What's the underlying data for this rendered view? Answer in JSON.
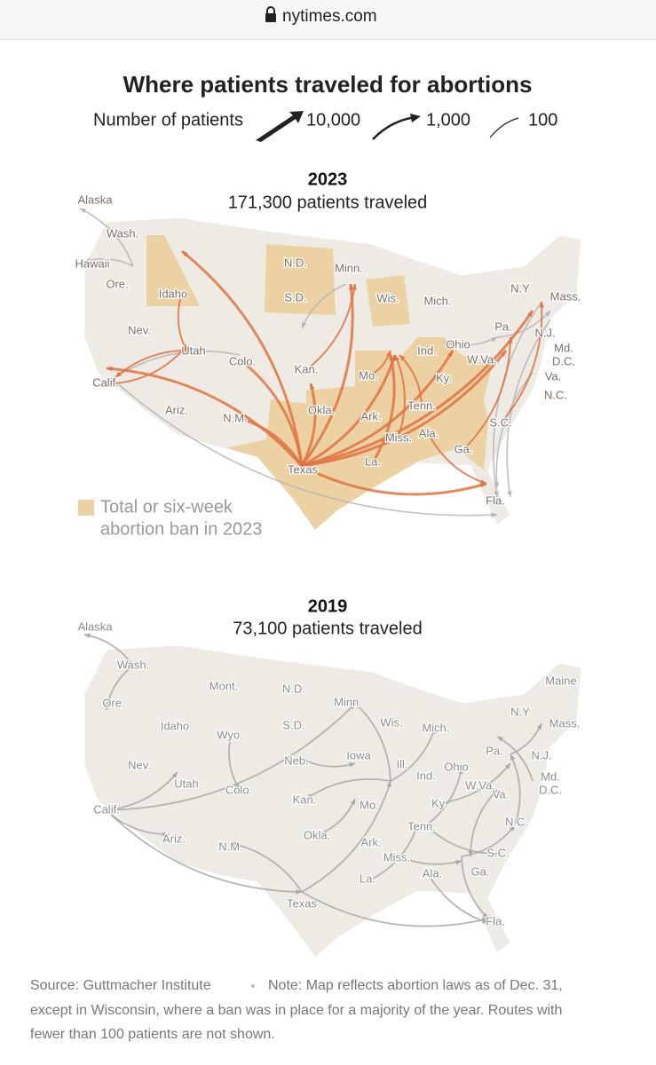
{
  "browser": {
    "url": "nytimes.com"
  },
  "header": {
    "title": "Where patients traveled for abortions",
    "legend_label": "Number of patients",
    "legend_items": [
      "10,000",
      "1,000",
      "100"
    ]
  },
  "maps": [
    {
      "year": "2023",
      "subtitle": "171,300 patients traveled",
      "labels": [
        "Alaska",
        "Wash.",
        "Hawaii",
        "Ore.",
        "Idaho",
        "N.D.",
        "S.D.",
        "Minn.",
        "Wis.",
        "Mich.",
        "N.Y",
        "Mass.",
        "Nev.",
        "Utah",
        "Colo.",
        "Kan.",
        "Mo.",
        "Ind.",
        "Ohio",
        "Pa.",
        "N.J.",
        "Md.",
        "D.C.",
        "W.Va.",
        "Ky.",
        "Va.",
        "N.C.",
        "Calif.",
        "Ariz.",
        "N.M.",
        "Okla.",
        "Ark.",
        "Tenn.",
        "S.C.",
        "Miss.",
        "Ala.",
        "Ga.",
        "Texas",
        "La.",
        "Fla."
      ],
      "ban_legend": [
        "Total or six-week",
        "abortion ban in 2023"
      ]
    },
    {
      "year": "2019",
      "subtitle": "73,100 patients traveled",
      "labels": [
        "Alaska",
        "Wash.",
        "Mont.",
        "N.D.",
        "Ore.",
        "Minn.",
        "Idaho",
        "S.D.",
        "Wis.",
        "Mich.",
        "Wyo.",
        "Maine",
        "N.Y",
        "Mass.",
        "Neb.",
        "Iowa",
        "Pa.",
        "N.J.",
        "Ohio",
        "Ill.",
        "Nev.",
        "Utah",
        "Colo.",
        "Ind.",
        "W.Va.",
        "Md.",
        "D.C.",
        "Calif.",
        "Kan.",
        "Mo.",
        "Ky.",
        "Va.",
        "N.C.",
        "Tenn.",
        "Ark.",
        "Okla.",
        "Ariz.",
        "N.M.",
        "Miss.",
        "S.C.",
        "Ala.",
        "Ga.",
        "La.",
        "Texas",
        "Fla."
      ]
    }
  ],
  "footer": {
    "source": "Source: Guttmacher Institute",
    "note_lines": [
      "Note: Map reflects abortion laws as of Dec. 31,",
      "except in Wisconsin, where a ban was in place for a majority of the year. Routes with",
      "fewer than 100 patients are not shown."
    ]
  }
}
